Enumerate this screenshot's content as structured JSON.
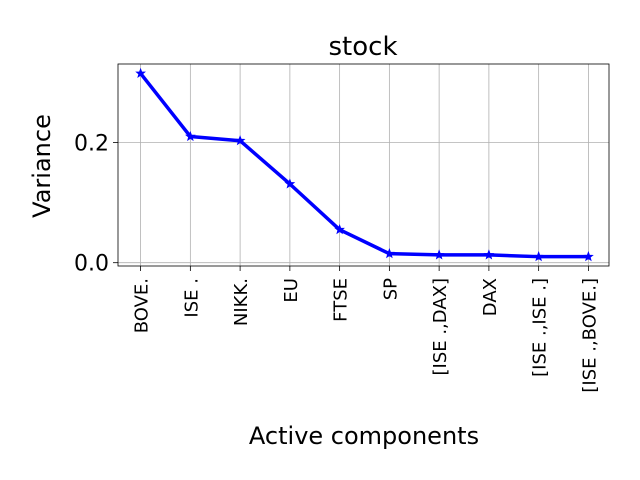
{
  "chart_data": {
    "type": "line",
    "title": "stock",
    "xlabel": "Active components",
    "ylabel": "Variance",
    "categories": [
      "BOVE.",
      "ISE .",
      "NIKK.",
      "EU",
      "FTSE",
      "SP",
      "[ISE .,DAX]",
      "DAX",
      "[ISE .,ISE .]",
      "[ISE .,BOVE.]"
    ],
    "series": [
      {
        "name": "Variance",
        "color": "#0000ff",
        "marker": "star",
        "values": [
          0.315,
          0.21,
          0.203,
          0.131,
          0.055,
          0.015,
          0.013,
          0.013,
          0.01,
          0.01
        ]
      }
    ],
    "ylim": [
      -0.0055,
      0.3307
    ],
    "yticks": [
      0.0,
      0.2
    ],
    "ytick_labels": [
      "0.0",
      "0.2"
    ],
    "grid": true
  }
}
